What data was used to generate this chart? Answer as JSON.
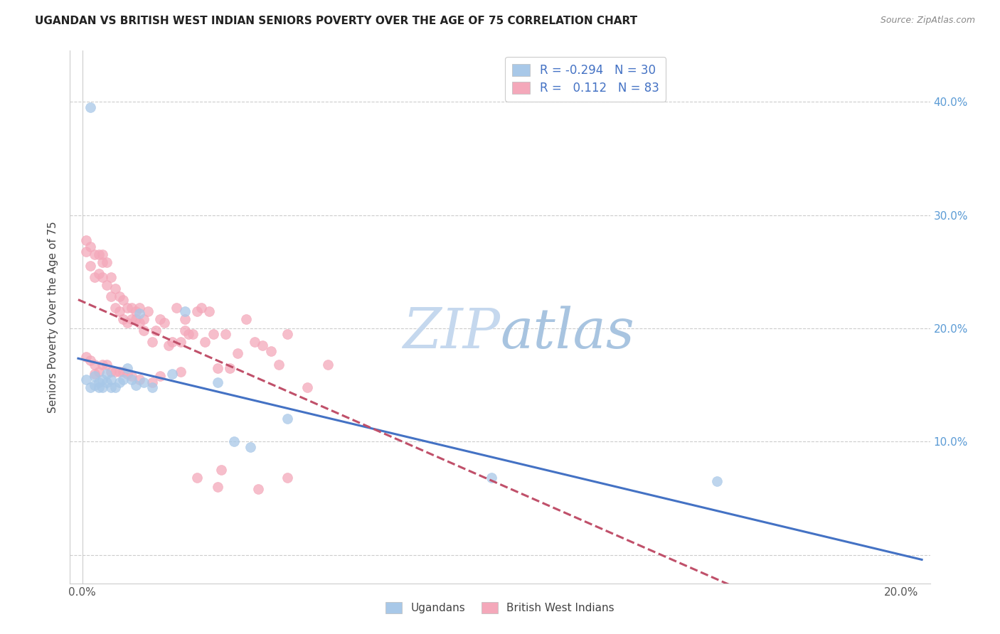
{
  "title": "UGANDAN VS BRITISH WEST INDIAN SENIORS POVERTY OVER THE AGE OF 75 CORRELATION CHART",
  "source": "Source: ZipAtlas.com",
  "ylabel": "Seniors Poverty Over the Age of 75",
  "ugandan_R": -0.294,
  "ugandan_N": 30,
  "bwi_R": 0.112,
  "bwi_N": 83,
  "ugandan_color": "#A8C8E8",
  "bwi_color": "#F4A8BA",
  "ugandan_line_color": "#4472C4",
  "bwi_line_color": "#C0506A",
  "xlim": [
    -0.003,
    0.207
  ],
  "ylim": [
    -0.025,
    0.445
  ],
  "xtick_positions": [
    0.0,
    0.05,
    0.1,
    0.15,
    0.2
  ],
  "xtick_labels": [
    "0.0%",
    "",
    "",
    "",
    "20.0%"
  ],
  "ytick_positions": [
    0.0,
    0.1,
    0.2,
    0.3,
    0.4
  ],
  "ytick_labels_right": [
    "",
    "10.0%",
    "20.0%",
    "30.0%",
    "40.0%"
  ],
  "ugandan_x": [
    0.002,
    0.001,
    0.002,
    0.003,
    0.003,
    0.004,
    0.004,
    0.005,
    0.005,
    0.006,
    0.006,
    0.007,
    0.007,
    0.008,
    0.009,
    0.01,
    0.011,
    0.012,
    0.013,
    0.014,
    0.015,
    0.017,
    0.022,
    0.025,
    0.033,
    0.037,
    0.041,
    0.05,
    0.1,
    0.155
  ],
  "ugandan_y": [
    0.395,
    0.155,
    0.148,
    0.15,
    0.158,
    0.148,
    0.152,
    0.155,
    0.148,
    0.16,
    0.152,
    0.148,
    0.155,
    0.148,
    0.152,
    0.155,
    0.165,
    0.155,
    0.15,
    0.213,
    0.152,
    0.148,
    0.16,
    0.215,
    0.152,
    0.1,
    0.095,
    0.12,
    0.068,
    0.065
  ],
  "bwi_x": [
    0.001,
    0.001,
    0.002,
    0.002,
    0.003,
    0.003,
    0.004,
    0.004,
    0.005,
    0.005,
    0.005,
    0.006,
    0.006,
    0.007,
    0.007,
    0.008,
    0.008,
    0.009,
    0.009,
    0.01,
    0.01,
    0.011,
    0.011,
    0.012,
    0.012,
    0.013,
    0.013,
    0.014,
    0.014,
    0.015,
    0.015,
    0.016,
    0.017,
    0.018,
    0.019,
    0.02,
    0.021,
    0.022,
    0.023,
    0.024,
    0.025,
    0.025,
    0.026,
    0.027,
    0.028,
    0.03,
    0.031,
    0.032,
    0.033,
    0.035,
    0.036,
    0.038,
    0.04,
    0.042,
    0.044,
    0.046,
    0.048,
    0.05,
    0.055,
    0.06,
    0.001,
    0.002,
    0.003,
    0.003,
    0.004,
    0.005,
    0.006,
    0.007,
    0.008,
    0.009,
    0.01,
    0.011,
    0.012,
    0.014,
    0.017,
    0.019,
    0.024,
    0.029,
    0.034,
    0.05,
    0.028,
    0.033,
    0.043
  ],
  "bwi_y": [
    0.278,
    0.268,
    0.272,
    0.255,
    0.265,
    0.245,
    0.265,
    0.248,
    0.265,
    0.258,
    0.245,
    0.258,
    0.238,
    0.245,
    0.228,
    0.235,
    0.218,
    0.228,
    0.215,
    0.225,
    0.208,
    0.218,
    0.205,
    0.218,
    0.208,
    0.215,
    0.208,
    0.205,
    0.218,
    0.208,
    0.198,
    0.215,
    0.188,
    0.198,
    0.208,
    0.205,
    0.185,
    0.188,
    0.218,
    0.188,
    0.208,
    0.198,
    0.195,
    0.195,
    0.215,
    0.188,
    0.215,
    0.195,
    0.165,
    0.195,
    0.165,
    0.178,
    0.208,
    0.188,
    0.185,
    0.18,
    0.168,
    0.195,
    0.148,
    0.168,
    0.175,
    0.172,
    0.168,
    0.16,
    0.162,
    0.168,
    0.168,
    0.162,
    0.162,
    0.162,
    0.162,
    0.16,
    0.158,
    0.155,
    0.152,
    0.158,
    0.162,
    0.218,
    0.075,
    0.068,
    0.068,
    0.06,
    0.058
  ]
}
